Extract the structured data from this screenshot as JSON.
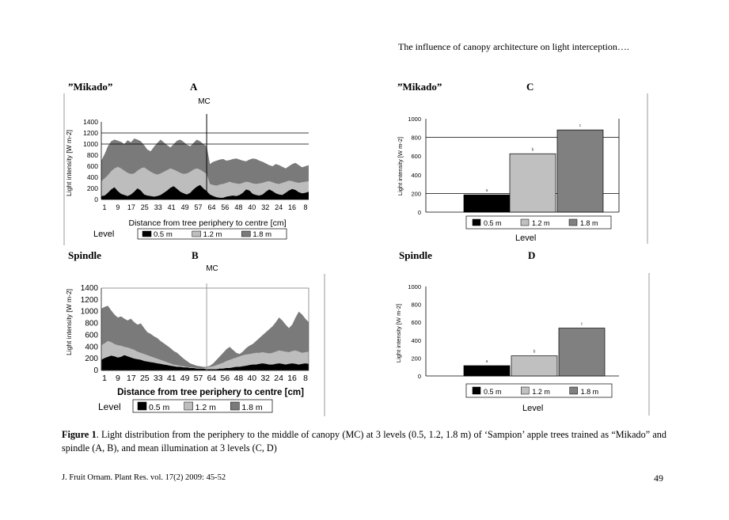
{
  "header": {
    "running_title": "The influence of canopy architecture on light interception…."
  },
  "panels": {
    "a": {
      "cultivar": "”Mikado”",
      "letter": "A"
    },
    "b": {
      "cultivar": "Spindle",
      "letter": "B"
    },
    "c": {
      "cultivar": "”Mikado”",
      "letter": "C"
    },
    "d": {
      "cultivar": "Spindle",
      "letter": "D"
    }
  },
  "caption": {
    "label": "Figure 1",
    "text": ". Light distribution from the periphery to the middle of canopy (MC) at 3 levels (0.5, 1.2, 1.8 m) of ‘Sampion’ apple trees trained as “Mikado” and spindle (A, B), and mean illumination at 3 levels (C, D)"
  },
  "footer": {
    "journal": "J. Fruit Ornam. Plant Res. vol. 17(2) 2009: 45-52",
    "page_number": "49"
  },
  "chart_data": [
    {
      "id": "A",
      "type": "area",
      "mc_label": "MC",
      "ylabel": "Light intensity [W m-2]",
      "xlabel": "Distance from tree periphery to centre [cm]",
      "yticks": [
        "1400",
        "1200",
        "1000",
        "800",
        "600",
        "400",
        "200",
        "0"
      ],
      "ylim": [
        0,
        1400
      ],
      "xticks": [
        "1",
        "9",
        "17",
        "25",
        "33",
        "41",
        "49",
        "57",
        "64",
        "56",
        "48",
        "40",
        "32",
        "24",
        "16",
        "8"
      ],
      "legend_title": "Level",
      "series": [
        {
          "name": "0.5 m",
          "color": "#000000",
          "values": [
            60,
            70,
            120,
            180,
            220,
            150,
            100,
            80,
            60,
            90,
            140,
            200,
            160,
            90,
            70,
            60,
            50,
            60,
            80,
            120,
            160,
            210,
            240,
            190,
            140,
            110,
            90,
            120,
            180,
            230,
            260,
            200,
            150,
            90,
            60,
            40,
            30,
            30,
            50,
            60,
            70,
            60,
            80,
            120,
            180,
            160,
            100,
            80,
            70,
            90,
            140,
            180,
            150,
            110,
            90,
            80,
            120,
            160,
            190,
            170,
            130,
            110,
            120,
            140
          ]
        },
        {
          "name": "1.2 m",
          "color": "#bdbdbd",
          "values": [
            330,
            380,
            440,
            510,
            560,
            590,
            560,
            520,
            480,
            460,
            470,
            520,
            560,
            580,
            540,
            500,
            470,
            450,
            470,
            500,
            530,
            560,
            540,
            510,
            480,
            460,
            470,
            500,
            540,
            560,
            540,
            500,
            460,
            280,
            260,
            250,
            270,
            280,
            300,
            320,
            300,
            290,
            280,
            300,
            320,
            310,
            290,
            280,
            290,
            300,
            320,
            330,
            310,
            290,
            280,
            300,
            320,
            340,
            330,
            310,
            300,
            310,
            320,
            330
          ]
        },
        {
          "name": "1.8 m",
          "color": "#7a7a7a",
          "values": [
            700,
            820,
            960,
            1050,
            1080,
            1060,
            1040,
            1000,
            1070,
            1030,
            1100,
            1080,
            1050,
            980,
            900,
            870,
            950,
            1020,
            1080,
            1030,
            980,
            940,
            1000,
            1060,
            1080,
            1040,
            990,
            960,
            1020,
            1080,
            1050,
            1000,
            960,
            640,
            680,
            700,
            720,
            730,
            700,
            710,
            730,
            740,
            720,
            700,
            690,
            720,
            740,
            730,
            700,
            680,
            650,
            620,
            600,
            640,
            620,
            590,
            560,
            600,
            640,
            660,
            620,
            580,
            600,
            620
          ]
        }
      ]
    },
    {
      "id": "B",
      "type": "area",
      "mc_label": "MC",
      "ylabel": "Light intensity [W m-2]",
      "xlabel": "Distance from tree periphery to centre [cm]",
      "yticks": [
        "1400",
        "1200",
        "1000",
        "800",
        "600",
        "400",
        "200",
        "0"
      ],
      "ylim": [
        0,
        1400
      ],
      "xticks": [
        "1",
        "9",
        "17",
        "25",
        "33",
        "41",
        "49",
        "57",
        "64",
        "56",
        "48",
        "40",
        "32",
        "24",
        "16",
        "8"
      ],
      "legend_title": "Level",
      "series": [
        {
          "name": "0.5 m",
          "color": "#000000",
          "values": [
            180,
            210,
            230,
            250,
            240,
            220,
            230,
            260,
            240,
            220,
            200,
            190,
            180,
            160,
            150,
            140,
            130,
            120,
            110,
            100,
            90,
            80,
            70,
            60,
            60,
            50,
            50,
            40,
            40,
            30,
            30,
            30,
            20,
            20,
            20,
            20,
            30,
            30,
            40,
            40,
            50,
            60,
            60,
            70,
            80,
            90,
            100,
            100,
            110,
            120,
            110,
            100,
            100,
            110,
            120,
            110,
            100,
            110,
            120,
            110,
            100,
            110,
            120,
            110
          ]
        },
        {
          "name": "1.2 m",
          "color": "#bdbdbd",
          "values": [
            430,
            460,
            500,
            480,
            450,
            430,
            420,
            400,
            390,
            370,
            350,
            320,
            300,
            280,
            260,
            240,
            220,
            200,
            180,
            160,
            140,
            120,
            100,
            90,
            80,
            70,
            60,
            50,
            50,
            40,
            40,
            40,
            50,
            60,
            70,
            90,
            110,
            130,
            160,
            180,
            200,
            220,
            240,
            260,
            270,
            280,
            290,
            300,
            300,
            310,
            300,
            290,
            300,
            320,
            340,
            330,
            320,
            310,
            330,
            340,
            320,
            300,
            310,
            320
          ]
        },
        {
          "name": "1.8 m",
          "color": "#7a7a7a",
          "values": [
            1050,
            1080,
            1100,
            1020,
            950,
            900,
            920,
            880,
            850,
            880,
            820,
            780,
            800,
            720,
            650,
            620,
            580,
            550,
            500,
            460,
            420,
            380,
            330,
            300,
            250,
            200,
            160,
            120,
            100,
            80,
            70,
            60,
            60,
            80,
            120,
            180,
            240,
            300,
            360,
            400,
            350,
            300,
            280,
            320,
            380,
            420,
            450,
            500,
            550,
            600,
            650,
            700,
            750,
            820,
            900,
            850,
            780,
            720,
            780,
            900,
            1000,
            950,
            880,
            820
          ]
        }
      ]
    },
    {
      "id": "C",
      "type": "bar",
      "categories": [
        "0.5 m",
        "1.2 m",
        "1.8 m"
      ],
      "values": [
        185,
        625,
        880
      ],
      "colors": [
        "#000000",
        "#c0c0c0",
        "#808080"
      ],
      "ylim": [
        0,
        1000
      ],
      "yticks": [
        "1000",
        "800",
        "600",
        "400",
        "200",
        "0"
      ],
      "ylabel": "Light intensity [W m-2]",
      "legend_title": "Level",
      "significance": [
        "a",
        "b",
        "c"
      ]
    },
    {
      "id": "D",
      "type": "bar",
      "categories": [
        "0.5 m",
        "1.2 m",
        "1.8 m"
      ],
      "values": [
        115,
        225,
        535
      ],
      "colors": [
        "#000000",
        "#c0c0c0",
        "#808080"
      ],
      "ylim": [
        0,
        1000
      ],
      "yticks": [
        "1000",
        "800",
        "600",
        "400",
        "200",
        "0"
      ],
      "ylabel": "Light intensity [W m-2]",
      "legend_title": "Level",
      "significance": [
        "a",
        "b",
        "c"
      ]
    }
  ]
}
